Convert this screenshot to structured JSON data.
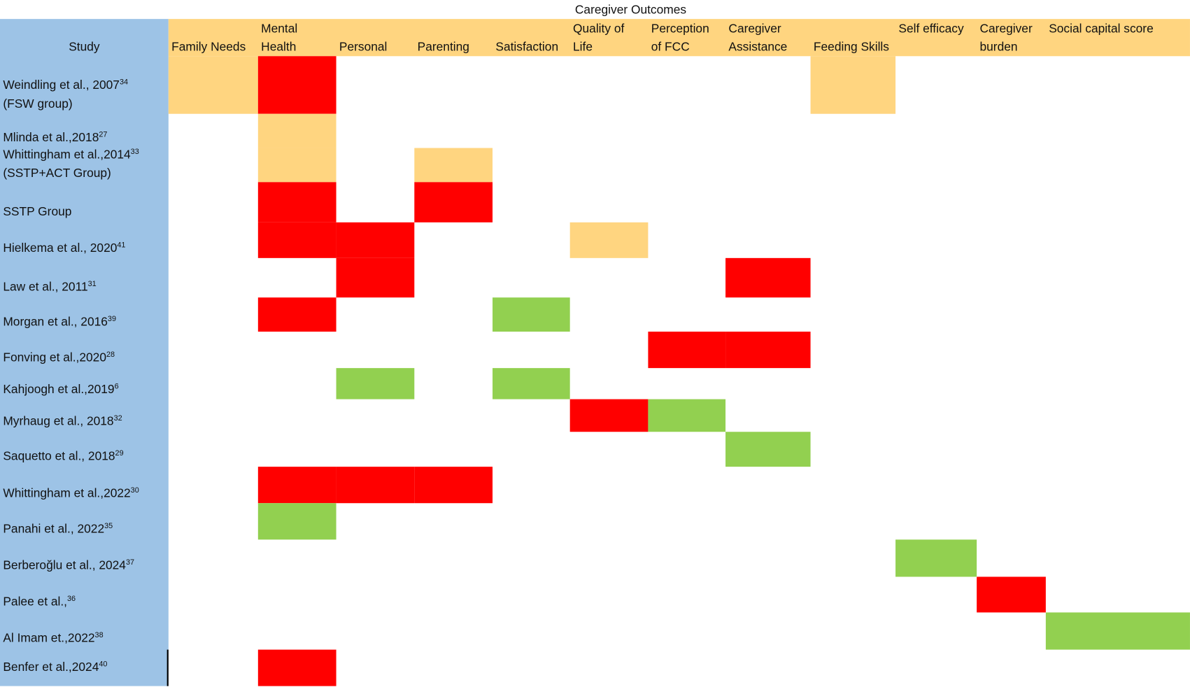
{
  "title": "Caregiver Outcomes",
  "study_header": "Study",
  "columns": [
    [
      "Family Needs"
    ],
    [
      "Mental",
      "Health"
    ],
    [
      "Personal"
    ],
    [
      "Parenting"
    ],
    [
      "Satisfaction"
    ],
    [
      "Quality of",
      "Life"
    ],
    [
      "Perception",
      "of FCC"
    ],
    [
      "Caregiver",
      "Assistance"
    ],
    [
      "Feeding Skills"
    ],
    [
      "Self efficacy"
    ],
    [
      "Caregiver",
      "burden"
    ],
    [
      "Social capital score"
    ]
  ],
  "rows": [
    {
      "study": [
        "Weindling et al., 2007",
        "(FSW group)"
      ],
      "sup": "34",
      "cells": [
        "#ffd580",
        "#ff0000",
        null,
        null,
        null,
        null,
        null,
        null,
        "#ffd580",
        null,
        null,
        null
      ]
    },
    {
      "study": [
        "Mlinda et al.,2018"
      ],
      "sup": "27",
      "cells": [
        null,
        "#ffd580",
        null,
        null,
        null,
        null,
        null,
        null,
        null,
        null,
        null,
        null
      ]
    },
    {
      "study": [
        "Whittingham et al.,2014",
        "(SSTP+ACT Group)"
      ],
      "sup": "33",
      "cells": [
        null,
        "#ffd580",
        null,
        "#ffd580",
        null,
        null,
        null,
        null,
        null,
        null,
        null,
        null
      ]
    },
    {
      "study": [
        "SSTP Group"
      ],
      "cells": [
        null,
        "#ff0000",
        null,
        "#ff0000",
        null,
        null,
        null,
        null,
        null,
        null,
        null,
        null
      ]
    },
    {
      "study": [
        "Hielkema et al., 2020"
      ],
      "sup": "41",
      "cells": [
        null,
        "#ff0000",
        "#ff0000",
        null,
        null,
        "#ffd580",
        null,
        null,
        null,
        null,
        null,
        null
      ]
    },
    {
      "study": [
        "Law et al., 2011"
      ],
      "sup": "31",
      "cells": [
        null,
        null,
        "#ff0000",
        null,
        null,
        null,
        null,
        "#ff0000",
        null,
        null,
        null,
        null
      ]
    },
    {
      "study": [
        "Morgan et al., 2016"
      ],
      "sup": "39",
      "cells": [
        null,
        "#ff0000",
        null,
        null,
        "#92d050",
        null,
        null,
        null,
        null,
        null,
        null,
        null
      ]
    },
    {
      "study": [
        "Fonving et al.,2020"
      ],
      "sup": "28",
      "cells": [
        null,
        null,
        null,
        null,
        null,
        null,
        "#ff0000",
        "#ff0000",
        null,
        null,
        null,
        null
      ]
    },
    {
      "study": [
        "Kahjoogh et al.,2019"
      ],
      "sup": "6",
      "cells": [
        null,
        null,
        "#92d050",
        null,
        "#92d050",
        null,
        null,
        null,
        null,
        null,
        null,
        null
      ]
    },
    {
      "study": [
        "Myrhaug et al., 2018"
      ],
      "sup": "32",
      "cells": [
        null,
        null,
        null,
        null,
        null,
        "#ff0000",
        "#92d050",
        null,
        null,
        null,
        null,
        null
      ]
    },
    {
      "study": [
        "Saquetto et al., 2018"
      ],
      "sup": "29",
      "cells": [
        null,
        null,
        null,
        null,
        null,
        null,
        null,
        "#92d050",
        null,
        null,
        null,
        null
      ]
    },
    {
      "study": [
        "Whittingham et al.,2022"
      ],
      "sup": "30",
      "cells": [
        null,
        "#ff0000",
        "#ff0000",
        "#ff0000",
        null,
        null,
        null,
        null,
        null,
        null,
        null,
        null
      ]
    },
    {
      "study": [
        "Panahi et al., 2022"
      ],
      "sup": "35",
      "cells": [
        null,
        "#92d050",
        null,
        null,
        null,
        null,
        null,
        null,
        null,
        null,
        null,
        null
      ]
    },
    {
      "study": [
        "Berberoğlu et al., 2024"
      ],
      "sup": "37",
      "cells": [
        null,
        null,
        null,
        null,
        null,
        null,
        null,
        null,
        null,
        "#92d050",
        null,
        null
      ]
    },
    {
      "study": [
        "Palee et al.,"
      ],
      "sup": "36",
      "cells": [
        null,
        null,
        null,
        null,
        null,
        null,
        null,
        null,
        null,
        null,
        "#ff0000",
        null
      ]
    },
    {
      "study": [
        "Al Imam et.,2022"
      ],
      "sup": "38",
      "cells": [
        null,
        null,
        null,
        null,
        null,
        null,
        null,
        null,
        null,
        null,
        null,
        "#92d050"
      ]
    },
    {
      "study": [
        "Benfer et al.,2024"
      ],
      "sup": "40",
      "cells": [
        null,
        "#ff0000",
        null,
        null,
        null,
        null,
        null,
        null,
        null,
        null,
        null,
        null
      ]
    }
  ]
}
